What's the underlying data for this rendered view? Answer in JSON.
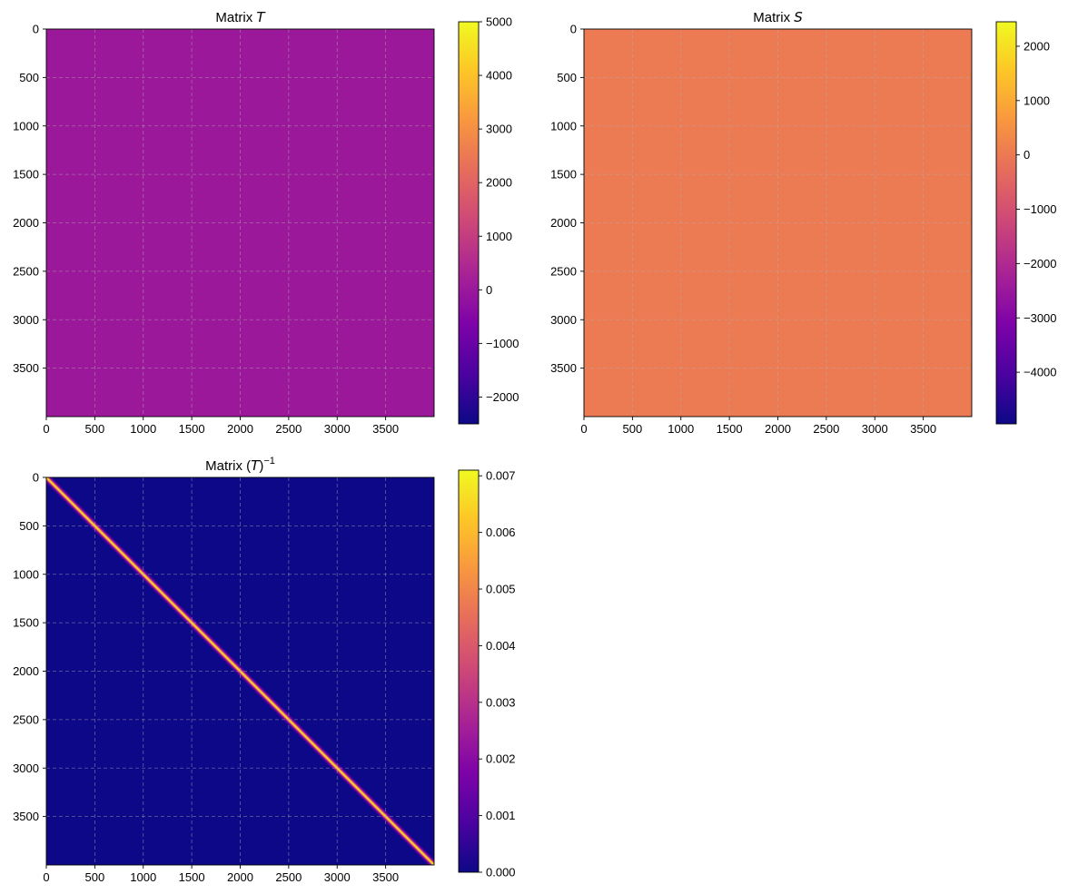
{
  "chart_data": [
    {
      "type": "heatmap",
      "id": "T",
      "title_prefix": "Matrix ",
      "title_symbol": "T",
      "title_suffix": "",
      "title_superscript": "",
      "colormap": "plasma",
      "xlim": [
        0,
        4000
      ],
      "ylim": [
        4000,
        0
      ],
      "x_ticks": [
        0,
        500,
        1000,
        1500,
        2000,
        2500,
        3000,
        3500
      ],
      "y_ticks": [
        0,
        500,
        1000,
        1500,
        2000,
        2500,
        3000,
        3500
      ],
      "grid": true,
      "pattern": "uniform",
      "uniform_value": 0,
      "colorbar": {
        "vmin": -2500,
        "vmax": 5000,
        "ticks": [
          5000,
          4000,
          3000,
          2000,
          1000,
          0,
          -1000,
          -2000
        ],
        "tick_labels": [
          "5000",
          "4000",
          "3000",
          "2000",
          "1000",
          "0",
          "−1000",
          "−2000"
        ]
      }
    },
    {
      "type": "heatmap",
      "id": "S",
      "title_prefix": "Matrix ",
      "title_symbol": "S",
      "title_suffix": "",
      "title_superscript": "",
      "colormap": "plasma",
      "xlim": [
        0,
        4000
      ],
      "ylim": [
        4000,
        0
      ],
      "x_ticks": [
        0,
        500,
        1000,
        1500,
        2000,
        2500,
        3000,
        3500
      ],
      "y_ticks": [
        0,
        500,
        1000,
        1500,
        2000,
        2500,
        3000,
        3500
      ],
      "grid": true,
      "pattern": "uniform",
      "uniform_value": 0,
      "colorbar": {
        "vmin": -4950,
        "vmax": 2450,
        "ticks": [
          2000,
          1000,
          0,
          -1000,
          -2000,
          -3000,
          -4000
        ],
        "tick_labels": [
          "2000",
          "1000",
          "0",
          "−1000",
          "−2000",
          "−3000",
          "−4000"
        ]
      }
    },
    {
      "type": "heatmap",
      "id": "Tinv",
      "title_prefix": "Matrix (",
      "title_symbol": "T",
      "title_suffix": ")",
      "title_superscript": "−1",
      "colormap": "plasma",
      "xlim": [
        0,
        4000
      ],
      "ylim": [
        4000,
        0
      ],
      "x_ticks": [
        0,
        500,
        1000,
        1500,
        2000,
        2500,
        3000,
        3500
      ],
      "y_ticks": [
        0,
        500,
        1000,
        1500,
        2000,
        2500,
        3000,
        3500
      ],
      "grid": true,
      "pattern": "diagonal",
      "diagonal_value": 0.0067,
      "background_value": 0,
      "colorbar": {
        "vmin": 0,
        "vmax": 0.0071,
        "ticks": [
          0.007,
          0.006,
          0.005,
          0.004,
          0.003,
          0.002,
          0.001,
          0
        ],
        "tick_labels": [
          "0.007",
          "0.006",
          "0.005",
          "0.004",
          "0.003",
          "0.002",
          "0.001",
          "0.000"
        ]
      }
    }
  ]
}
